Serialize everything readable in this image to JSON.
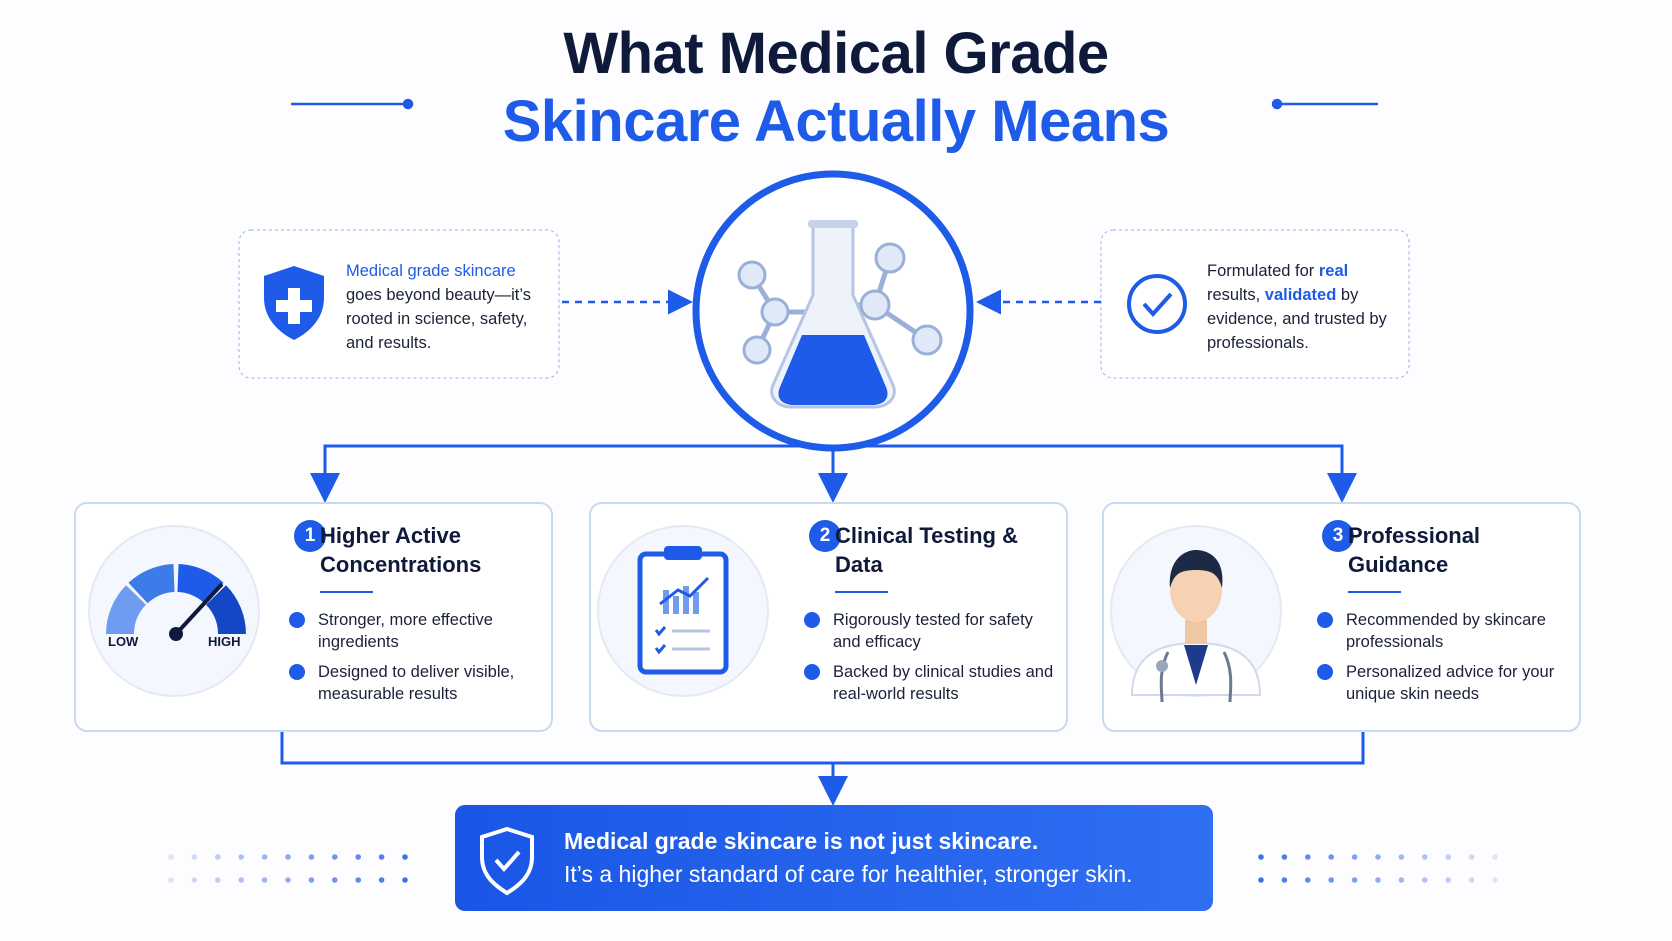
{
  "title": {
    "line1": "What Medical Grade",
    "line2": "Skincare Actually Means"
  },
  "left_note": {
    "highlight": "Medical grade skincare",
    "text": "goes beyond beauty—it’s rooted in science, safety, and results."
  },
  "right_note": {
    "parts": [
      "Formulated for ",
      "real",
      " results, ",
      "validated",
      " by evidence, and trusted by professionals."
    ]
  },
  "gauge": {
    "low": "LOW",
    "high": "HIGH"
  },
  "cards": [
    {
      "number": "1",
      "title": "Higher Active Concentrations",
      "bullets": [
        "Stronger, more effective ingredients",
        "Designed to deliver visible, measurable results"
      ]
    },
    {
      "number": "2",
      "title": "Clinical Testing & Data",
      "bullets": [
        "Rigorously tested for safety and efficacy",
        "Backed by clinical studies and real-world results"
      ]
    },
    {
      "number": "3",
      "title": "Professional Guidance",
      "bullets": [
        "Recommended by skincare professionals",
        "Personalized advice for your unique skin needs"
      ]
    }
  ],
  "banner": {
    "headline": "Medical grade skincare is not just skincare.",
    "text": "It’s a higher standard of care for healthier, stronger skin."
  }
}
